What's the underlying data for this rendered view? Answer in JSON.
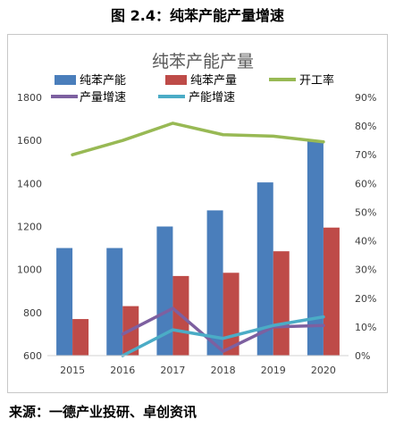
{
  "figure_title": "图 2.4：纯苯产能产量增速",
  "source_note": "来源：一德产业投研、卓创资讯",
  "chart_data": {
    "type": "bar",
    "title": "纯苯产能产量",
    "categories": [
      "2015",
      "2016",
      "2017",
      "2018",
      "2019",
      "2020"
    ],
    "left_axis": {
      "ylim": [
        600,
        1800
      ],
      "ticks": [
        600,
        800,
        1000,
        1200,
        1400,
        1600,
        1800
      ]
    },
    "right_axis": {
      "ylim": [
        0,
        90
      ],
      "ticks": [
        0,
        10,
        20,
        30,
        40,
        50,
        60,
        70,
        80,
        90
      ],
      "unit": "%"
    },
    "series": [
      {
        "name": "纯苯产能",
        "type": "bar",
        "axis": "left",
        "color": "#4A7EBB",
        "values": [
          1100,
          1100,
          1200,
          1275,
          1405,
          1600
        ]
      },
      {
        "name": "纯苯产量",
        "type": "bar",
        "axis": "left",
        "color": "#BE4B48",
        "values": [
          770,
          830,
          970,
          985,
          1085,
          1195
        ]
      },
      {
        "name": "开工率",
        "type": "line",
        "axis": "right",
        "color": "#98B954",
        "values": [
          70,
          75,
          81,
          77,
          76.5,
          74.5
        ]
      },
      {
        "name": "产量增速",
        "type": "line",
        "axis": "right",
        "color": "#7D60A0",
        "values": [
          null,
          7.5,
          16.5,
          1.5,
          10,
          10.5
        ]
      },
      {
        "name": "产能增速",
        "type": "line",
        "axis": "right",
        "color": "#4BACC6",
        "values": [
          null,
          0,
          9,
          6,
          10.5,
          13.5
        ]
      }
    ],
    "grid": false,
    "legend_position": "top"
  }
}
